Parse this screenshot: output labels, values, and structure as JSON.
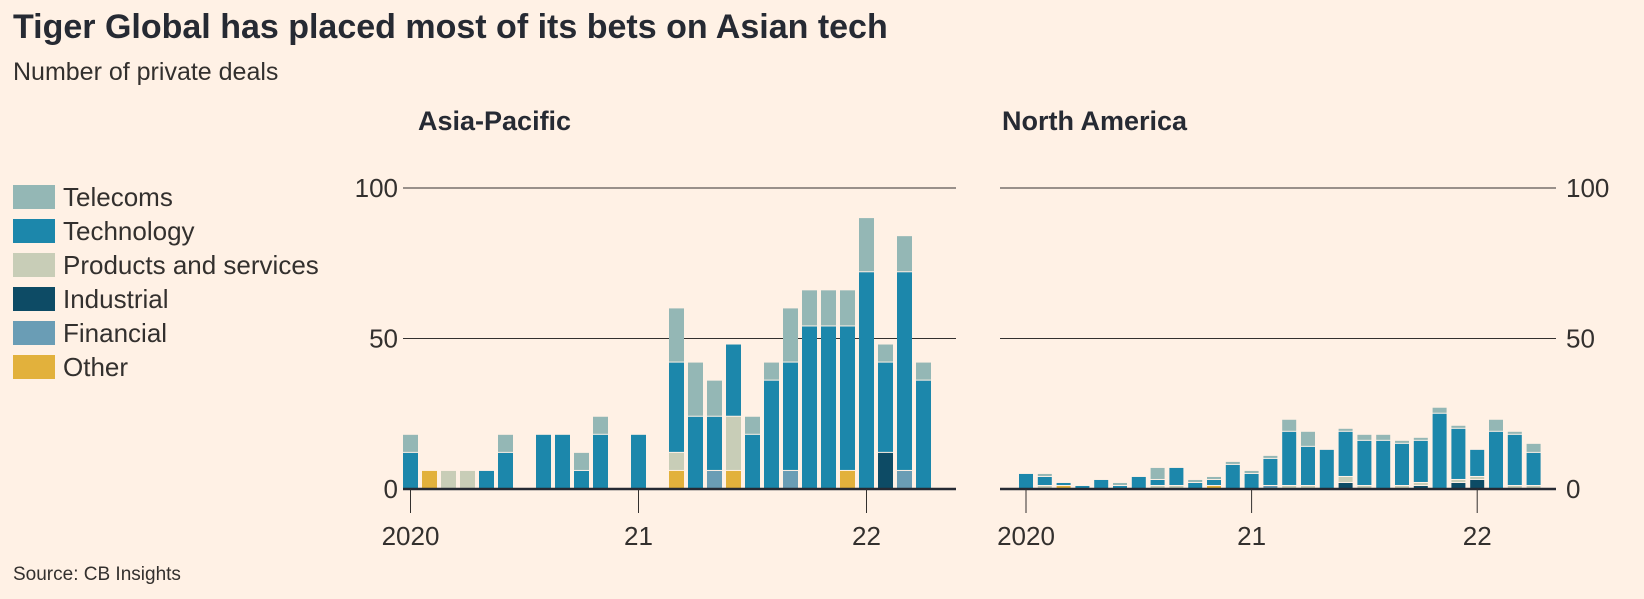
{
  "title": "Tiger Global has placed most of its bets on Asian tech",
  "subtitle": "Number of private deals",
  "source": "Source: CB Insights",
  "legend": [
    {
      "key": "Telecoms",
      "label": "Telecoms",
      "color": "#94B7B5"
    },
    {
      "key": "Technology",
      "label": "Technology",
      "color": "#1C87AB"
    },
    {
      "key": "Products and services",
      "label": "Products and services",
      "color": "#C8CDB7"
    },
    {
      "key": "Industrial",
      "label": "Industrial",
      "color": "#0D4B65"
    },
    {
      "key": "Financial",
      "label": "Financial",
      "color": "#6A9DB5"
    },
    {
      "key": "Other",
      "label": "Other",
      "color": "#E2B13C"
    }
  ],
  "chart_data": [
    {
      "type": "bar",
      "stacked": true,
      "title": "Asia-Pacific",
      "ylim": [
        0,
        100
      ],
      "yticks": [
        0,
        50,
        100
      ],
      "y_axis_side": "left",
      "x_tick_labels": [
        {
          "label": "2020",
          "index": 0
        },
        {
          "label": "21",
          "index": 12
        },
        {
          "label": "22",
          "index": 24
        }
      ],
      "categories": [
        "2020-01",
        "2020-02",
        "2020-03",
        "2020-04",
        "2020-05",
        "2020-06",
        "2020-07",
        "2020-08",
        "2020-09",
        "2020-10",
        "2020-11",
        "2020-12",
        "2021-01",
        "2021-02",
        "2021-03",
        "2021-04",
        "2021-05",
        "2021-06",
        "2021-07",
        "2021-08",
        "2021-09",
        "2021-10",
        "2021-11",
        "2021-12",
        "2022-01",
        "2022-02",
        "2022-03",
        "2022-04"
      ],
      "series": [
        {
          "name": "Other",
          "values": [
            0,
            6,
            0,
            0,
            0,
            0,
            0,
            0,
            0,
            0,
            0,
            0,
            0,
            0,
            6,
            0,
            0,
            6,
            0,
            0,
            0,
            0,
            0,
            6,
            0,
            0,
            0,
            0
          ]
        },
        {
          "name": "Financial",
          "values": [
            0,
            0,
            0,
            0,
            0,
            0,
            0,
            0,
            0,
            0,
            0,
            0,
            0,
            0,
            0,
            0,
            6,
            0,
            0,
            0,
            6,
            0,
            0,
            0,
            0,
            0,
            6,
            0
          ]
        },
        {
          "name": "Industrial",
          "values": [
            0,
            0,
            0,
            0,
            0,
            0,
            0,
            0,
            0,
            0,
            0,
            0,
            0,
            0,
            0,
            0,
            0,
            0,
            0,
            0,
            0,
            0,
            0,
            0,
            0,
            12,
            0,
            0
          ]
        },
        {
          "name": "Products and services",
          "values": [
            0,
            0,
            6,
            6,
            0,
            0,
            0,
            0,
            0,
            0,
            0,
            0,
            0,
            0,
            6,
            0,
            0,
            18,
            0,
            0,
            0,
            0,
            0,
            0,
            0,
            0,
            0,
            0
          ]
        },
        {
          "name": "Technology",
          "values": [
            12,
            0,
            0,
            0,
            6,
            12,
            0,
            18,
            18,
            6,
            18,
            0,
            18,
            0,
            30,
            24,
            18,
            24,
            18,
            36,
            36,
            54,
            54,
            48,
            72,
            30,
            66,
            36
          ]
        },
        {
          "name": "Telecoms",
          "values": [
            6,
            0,
            0,
            0,
            0,
            6,
            0,
            0,
            0,
            6,
            6,
            0,
            0,
            0,
            18,
            18,
            12,
            0,
            6,
            6,
            18,
            12,
            12,
            12,
            18,
            6,
            12,
            6
          ]
        }
      ]
    },
    {
      "type": "bar",
      "stacked": true,
      "title": "North America",
      "ylim": [
        0,
        100
      ],
      "yticks": [
        0,
        50,
        100
      ],
      "y_axis_side": "right",
      "x_tick_labels": [
        {
          "label": "2020",
          "index": 0
        },
        {
          "label": "21",
          "index": 12
        },
        {
          "label": "22",
          "index": 24
        }
      ],
      "categories": [
        "2020-01",
        "2020-02",
        "2020-03",
        "2020-04",
        "2020-05",
        "2020-06",
        "2020-07",
        "2020-08",
        "2020-09",
        "2020-10",
        "2020-11",
        "2020-12",
        "2021-01",
        "2021-02",
        "2021-03",
        "2021-04",
        "2021-05",
        "2021-06",
        "2021-07",
        "2021-08",
        "2021-09",
        "2021-10",
        "2021-11",
        "2021-12",
        "2022-01",
        "2022-02",
        "2022-03",
        "2022-04"
      ],
      "series": [
        {
          "name": "Other",
          "values": [
            0,
            0,
            1,
            0,
            0,
            0,
            0,
            0,
            0,
            0,
            1,
            0,
            0,
            0,
            0,
            0,
            0,
            0,
            0,
            0,
            0,
            0,
            0,
            0,
            0,
            0,
            0,
            0
          ]
        },
        {
          "name": "Financial",
          "values": [
            0,
            0,
            0,
            0,
            0,
            0,
            0,
            0,
            0,
            0,
            0,
            0,
            0,
            1,
            0,
            0,
            0,
            0,
            0,
            0,
            0,
            0,
            0,
            0,
            0,
            0,
            0,
            0
          ]
        },
        {
          "name": "Industrial",
          "values": [
            0,
            0,
            0,
            0,
            0,
            0,
            0,
            0,
            0,
            0,
            0,
            0,
            0,
            0,
            0,
            0,
            0,
            2,
            0,
            0,
            0,
            1,
            0,
            2,
            3,
            0,
            0,
            0
          ]
        },
        {
          "name": "Products and services",
          "values": [
            0,
            1,
            0,
            0,
            0,
            0,
            0,
            1,
            1,
            0,
            0,
            0,
            0,
            0,
            1,
            1,
            0,
            2,
            1,
            0,
            1,
            1,
            0,
            1,
            1,
            0,
            1,
            1
          ]
        },
        {
          "name": "Technology",
          "values": [
            5,
            3,
            1,
            1,
            3,
            1,
            4,
            2,
            6,
            2,
            2,
            8,
            5,
            9,
            18,
            13,
            13,
            15,
            15,
            16,
            14,
            14,
            25,
            17,
            9,
            19,
            17,
            11
          ]
        },
        {
          "name": "Telecoms",
          "values": [
            0,
            1,
            0,
            0,
            0,
            1,
            0,
            4,
            0,
            1,
            1,
            1,
            1,
            1,
            4,
            5,
            0,
            1,
            2,
            2,
            1,
            1,
            2,
            1,
            0,
            4,
            1,
            3
          ]
        }
      ]
    }
  ]
}
